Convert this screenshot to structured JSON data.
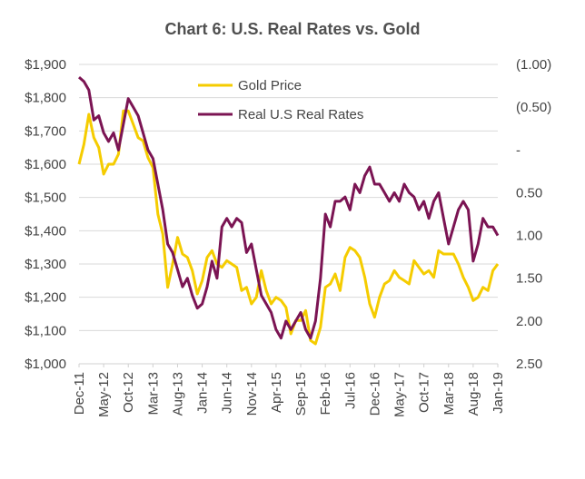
{
  "chart_data": {
    "type": "line",
    "title": "Chart 6: U.S. Real Rates vs. Gold",
    "xlabel": "",
    "ylabel": "",
    "y2label": "",
    "grid": true,
    "legend_position": "top-center",
    "x_tick_labels": [
      "Dec-11",
      "May-12",
      "Oct-12",
      "Mar-13",
      "Aug-13",
      "Jan-14",
      "Jun-14",
      "Nov-14",
      "Apr-15",
      "Sep-15",
      "Feb-16",
      "Jul-16",
      "Dec-16",
      "May-17",
      "Oct-17",
      "Mar-18",
      "Aug-18",
      "Jan-19"
    ],
    "y_left": {
      "ylim": [
        1000,
        1900
      ],
      "tick_values": [
        1000,
        1100,
        1200,
        1300,
        1400,
        1500,
        1600,
        1700,
        1800,
        1900
      ],
      "tick_labels": [
        "$1,000",
        "$1,100",
        "$1,200",
        "$1,300",
        "$1,400",
        "$1,500",
        "$1,600",
        "$1,700",
        "$1,800",
        "$1,900"
      ]
    },
    "y_right": {
      "ylim": [
        -1.0,
        2.5
      ],
      "inverted": true,
      "tick_values": [
        -1.0,
        -0.5,
        0,
        0.5,
        1.0,
        1.5,
        2.0,
        2.5
      ],
      "tick_labels": [
        "(1.00)",
        "(0.50)",
        "-",
        "0.50",
        "1.00",
        "1.50",
        "2.00",
        "2.50"
      ]
    },
    "x": [
      "Dec-11",
      "Jan-12",
      "Feb-12",
      "Mar-12",
      "Apr-12",
      "May-12",
      "Jun-12",
      "Jul-12",
      "Aug-12",
      "Sep-12",
      "Oct-12",
      "Nov-12",
      "Dec-12",
      "Jan-13",
      "Feb-13",
      "Mar-13",
      "Apr-13",
      "May-13",
      "Jun-13",
      "Jul-13",
      "Aug-13",
      "Sep-13",
      "Oct-13",
      "Nov-13",
      "Dec-13",
      "Jan-14",
      "Feb-14",
      "Mar-14",
      "Apr-14",
      "May-14",
      "Jun-14",
      "Jul-14",
      "Aug-14",
      "Sep-14",
      "Oct-14",
      "Nov-14",
      "Dec-14",
      "Jan-15",
      "Feb-15",
      "Mar-15",
      "Apr-15",
      "May-15",
      "Jun-15",
      "Jul-15",
      "Aug-15",
      "Sep-15",
      "Oct-15",
      "Nov-15",
      "Dec-15",
      "Jan-16",
      "Feb-16",
      "Mar-16",
      "Apr-16",
      "May-16",
      "Jun-16",
      "Jul-16",
      "Aug-16",
      "Sep-16",
      "Oct-16",
      "Nov-16",
      "Dec-16",
      "Jan-17",
      "Feb-17",
      "Mar-17",
      "Apr-17",
      "May-17",
      "Jun-17",
      "Jul-17",
      "Aug-17",
      "Sep-17",
      "Oct-17",
      "Nov-17",
      "Dec-17",
      "Jan-18",
      "Feb-18",
      "Mar-18",
      "Apr-18",
      "May-18",
      "Jun-18",
      "Jul-18",
      "Aug-18",
      "Sep-18",
      "Oct-18",
      "Nov-18",
      "Dec-18",
      "Jan-19"
    ],
    "series": [
      {
        "name": "Gold Price",
        "axis": "left",
        "color": "#F5CC00",
        "values": [
          1600,
          1660,
          1750,
          1680,
          1650,
          1570,
          1600,
          1600,
          1630,
          1760,
          1760,
          1720,
          1680,
          1670,
          1620,
          1590,
          1450,
          1390,
          1230,
          1300,
          1380,
          1330,
          1320,
          1280,
          1210,
          1250,
          1320,
          1340,
          1300,
          1290,
          1310,
          1300,
          1290,
          1220,
          1230,
          1180,
          1200,
          1280,
          1220,
          1180,
          1200,
          1190,
          1170,
          1090,
          1130,
          1130,
          1160,
          1070,
          1060,
          1110,
          1230,
          1240,
          1270,
          1220,
          1320,
          1350,
          1340,
          1320,
          1260,
          1180,
          1140,
          1200,
          1240,
          1250,
          1280,
          1260,
          1250,
          1240,
          1310,
          1290,
          1270,
          1280,
          1260,
          1340,
          1330,
          1330,
          1330,
          1300,
          1260,
          1230,
          1190,
          1200,
          1230,
          1220,
          1280,
          1300
        ]
      },
      {
        "name": "Real U.S Real Rates",
        "axis": "right",
        "color": "#7B1453",
        "values": [
          -0.85,
          -0.8,
          -0.7,
          -0.35,
          -0.4,
          -0.2,
          -0.1,
          -0.2,
          0.0,
          -0.3,
          -0.6,
          -0.5,
          -0.4,
          -0.2,
          0.0,
          0.1,
          0.4,
          0.7,
          1.1,
          1.2,
          1.4,
          1.6,
          1.5,
          1.7,
          1.85,
          1.8,
          1.6,
          1.3,
          1.5,
          0.9,
          0.8,
          0.9,
          0.8,
          0.85,
          1.2,
          1.1,
          1.4,
          1.7,
          1.8,
          1.9,
          2.1,
          2.2,
          2.0,
          2.1,
          2.0,
          1.9,
          2.1,
          2.2,
          2.0,
          1.5,
          0.75,
          0.9,
          0.6,
          0.6,
          0.55,
          0.7,
          0.4,
          0.5,
          0.3,
          0.2,
          0.4,
          0.4,
          0.5,
          0.6,
          0.5,
          0.6,
          0.4,
          0.5,
          0.55,
          0.7,
          0.6,
          0.8,
          0.6,
          0.5,
          0.8,
          1.1,
          0.9,
          0.7,
          0.6,
          0.7,
          1.3,
          1.1,
          0.8,
          0.9,
          0.9,
          1.0
        ]
      }
    ],
    "legend": [
      "Gold Price",
      "Real U.S Real Rates"
    ]
  }
}
